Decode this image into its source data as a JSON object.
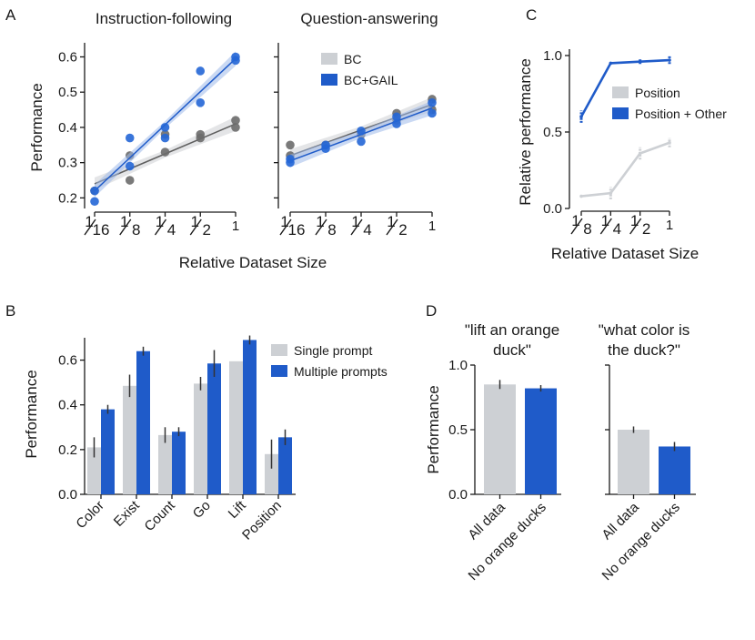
{
  "panel_labels": {
    "a": "A",
    "b": "B",
    "c": "C",
    "d": "D"
  },
  "colors": {
    "gray": "#cdd0d4",
    "gray_dot": "#6b6b6b",
    "gray_line": "#5e5e5e",
    "blue": "#1f5bc9",
    "blue_dot": "#2466d6"
  },
  "chart_data": [
    {
      "type": "scatter",
      "panel": "A",
      "title": "Instruction-following",
      "ylabel": "Performance",
      "xlabel": "Relative Dataset Size",
      "x_scale": "log2",
      "x_ticks": [
        0.0625,
        0.125,
        0.25,
        0.5,
        1
      ],
      "x_tick_labels": [
        {
          "num": "1",
          "den": "16"
        },
        {
          "num": "1",
          "den": "8"
        },
        {
          "num": "1",
          "den": "4"
        },
        {
          "num": "1",
          "den": "2"
        },
        {
          "num": "",
          "den": "1"
        }
      ],
      "ylim": [
        0.17,
        0.64
      ],
      "y_ticks": [
        0.2,
        0.3,
        0.4,
        0.5,
        0.6
      ],
      "y_tick_labels": [
        "0.2",
        "0.3",
        "0.4",
        "0.5",
        "0.6"
      ],
      "series": [
        {
          "name": "BC",
          "points": [
            [
              0.0625,
              0.22
            ],
            [
              0.125,
              0.32
            ],
            [
              0.125,
              0.25
            ],
            [
              0.25,
              0.33
            ],
            [
              0.25,
              0.38
            ],
            [
              0.5,
              0.37
            ],
            [
              0.5,
              0.38
            ],
            [
              1,
              0.4
            ],
            [
              1,
              0.42
            ]
          ],
          "fit": [
            [
              0.0625,
              0.24
            ],
            [
              1,
              0.41
            ]
          ]
        },
        {
          "name": "BC+GAIL",
          "points": [
            [
              0.0625,
              0.19
            ],
            [
              0.0625,
              0.22
            ],
            [
              0.125,
              0.37
            ],
            [
              0.125,
              0.29
            ],
            [
              0.25,
              0.4
            ],
            [
              0.25,
              0.37
            ],
            [
              0.5,
              0.56
            ],
            [
              0.5,
              0.47
            ],
            [
              1,
              0.6
            ],
            [
              1,
              0.59
            ]
          ],
          "fit": [
            [
              0.0625,
              0.22
            ],
            [
              1,
              0.595
            ]
          ]
        }
      ]
    },
    {
      "type": "scatter",
      "panel": "A",
      "title": "Question-answering",
      "x_scale": "log2",
      "x_ticks": [
        0.0625,
        0.125,
        0.25,
        0.5,
        1
      ],
      "x_tick_labels": [
        {
          "num": "1",
          "den": "16"
        },
        {
          "num": "1",
          "den": "8"
        },
        {
          "num": "1",
          "den": "4"
        },
        {
          "num": "1",
          "den": "2"
        },
        {
          "num": "",
          "den": "1"
        }
      ],
      "ylim": [
        0.17,
        0.64
      ],
      "legend": [
        {
          "name": "BC"
        },
        {
          "name": "BC+GAIL"
        }
      ],
      "series": [
        {
          "name": "BC",
          "points": [
            [
              0.0625,
              0.35
            ],
            [
              0.0625,
              0.32
            ],
            [
              0.125,
              0.35
            ],
            [
              0.25,
              0.38
            ],
            [
              0.5,
              0.44
            ],
            [
              0.5,
              0.42
            ],
            [
              1,
              0.48
            ],
            [
              1,
              0.45
            ]
          ],
          "fit": [
            [
              0.0625,
              0.32
            ],
            [
              1,
              0.465
            ]
          ]
        },
        {
          "name": "BC+GAIL",
          "points": [
            [
              0.0625,
              0.31
            ],
            [
              0.0625,
              0.3
            ],
            [
              0.125,
              0.34
            ],
            [
              0.125,
              0.35
            ],
            [
              0.25,
              0.36
            ],
            [
              0.25,
              0.39
            ],
            [
              0.5,
              0.41
            ],
            [
              0.5,
              0.43
            ],
            [
              1,
              0.47
            ],
            [
              1,
              0.44
            ]
          ],
          "fit": [
            [
              0.0625,
              0.305
            ],
            [
              1,
              0.455
            ]
          ]
        }
      ]
    },
    {
      "type": "bar",
      "panel": "B",
      "ylabel": "Performance",
      "ylim": [
        0,
        0.7
      ],
      "y_ticks": [
        0,
        0.2,
        0.4,
        0.6
      ],
      "y_tick_labels": [
        "0.0",
        "0.2",
        "0.4",
        "0.6"
      ],
      "categories": [
        "Color",
        "Exist",
        "Count",
        "Go",
        "Lift",
        "Position"
      ],
      "series": [
        {
          "name": "Single prompt",
          "values": [
            0.21,
            0.485,
            0.265,
            0.495,
            0.595,
            0.18
          ],
          "err": [
            0.045,
            0.05,
            0.035,
            0.03,
            0.0,
            0.065
          ]
        },
        {
          "name": "Multiple prompts",
          "values": [
            0.38,
            0.64,
            0.28,
            0.585,
            0.69,
            0.255
          ],
          "err": [
            0.02,
            0.02,
            0.02,
            0.06,
            0.02,
            0.035
          ]
        }
      ]
    },
    {
      "type": "line",
      "panel": "C",
      "ylabel": "Relative performance",
      "xlabel": "Relative Dataset Size",
      "x_scale": "log2",
      "x_ticks": [
        0.125,
        0.25,
        0.5,
        1
      ],
      "x_tick_labels": [
        {
          "num": "1",
          "den": "8"
        },
        {
          "num": "1",
          "den": "4"
        },
        {
          "num": "1",
          "den": "2"
        },
        {
          "num": "",
          "den": "1"
        }
      ],
      "ylim": [
        0,
        1.05
      ],
      "y_ticks": [
        0,
        0.5,
        1.0
      ],
      "y_tick_labels": [
        "0.0",
        "0.5",
        "1.0"
      ],
      "series": [
        {
          "name": "Position",
          "x": [
            0.125,
            0.25,
            0.5,
            1
          ],
          "values": [
            0.08,
            0.1,
            0.36,
            0.43
          ],
          "err": [
            0.005,
            0.04,
            0.04,
            0.03
          ]
        },
        {
          "name": "Position + Other",
          "x": [
            0.125,
            0.25,
            0.5,
            1
          ],
          "values": [
            0.6,
            0.95,
            0.96,
            0.97
          ],
          "err": [
            0.04,
            0.005,
            0.015,
            0.025
          ]
        }
      ]
    },
    {
      "type": "bar",
      "panel": "D",
      "title": "\"lift an orange duck\"",
      "ylabel": "Performance",
      "ylim": [
        0,
        1.0
      ],
      "y_ticks": [
        0,
        0.5,
        1.0
      ],
      "y_tick_labels": [
        "0.0",
        "0.5",
        "1.0"
      ],
      "categories": [
        "All data",
        "No orange ducks"
      ],
      "values": [
        0.85,
        0.82
      ],
      "err": [
        0.07,
        0.05
      ]
    },
    {
      "type": "bar",
      "panel": "D",
      "title": "\"what color is the duck?\"",
      "ylim": [
        0,
        1.0
      ],
      "categories": [
        "All data",
        "No orange ducks"
      ],
      "values": [
        0.5,
        0.37
      ],
      "err": [
        0.05,
        0.07
      ]
    }
  ],
  "d_titles": {
    "left": [
      "\"lift an orange",
      "duck\""
    ],
    "right": [
      "\"what color is",
      "the duck?\""
    ]
  }
}
